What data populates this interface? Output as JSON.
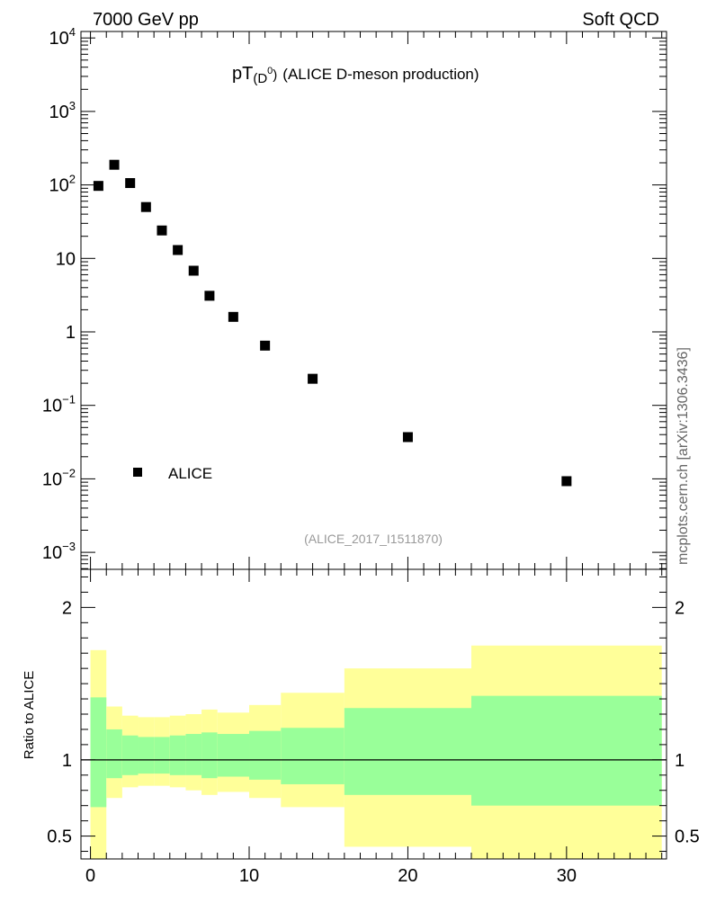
{
  "header": {
    "energy_label": "7000 GeV pp",
    "process_label": "Soft QCD",
    "side_label": "mcplots.cern.ch [arXiv:1306.3436]"
  },
  "chart_data": [
    {
      "type": "scatter",
      "title_main": "pT",
      "title_particle": "(D",
      "title_particle_sup": "0",
      "title_particle_close": ")",
      "title_rest": "(ALICE D-meson production)",
      "watermark": "(ALICE_2017_I1511870)",
      "yscale": "log",
      "ylim": [
        0.0005,
        14000
      ],
      "xlim": [
        -0.6,
        36.3
      ],
      "y_tick_labels": [
        {
          "base": "10",
          "exp": "4"
        },
        {
          "base": "10",
          "exp": "3"
        },
        {
          "base": "10",
          "exp": "2"
        },
        {
          "base": "10",
          "exp": ""
        },
        {
          "base": "1",
          "exp": ""
        },
        {
          "base": "10",
          "exp": "−1"
        },
        {
          "base": "10",
          "exp": "−2"
        },
        {
          "base": "10",
          "exp": "−3"
        }
      ],
      "legend": {
        "position": "bottom-left",
        "entries": [
          "ALICE"
        ]
      },
      "series": [
        {
          "name": "ALICE",
          "marker": "square",
          "color": "#000000",
          "x": [
            0.5,
            1.5,
            2.5,
            3.5,
            4.5,
            5.5,
            6.5,
            7.5,
            9.0,
            11.0,
            14.0,
            20.0,
            30.0
          ],
          "y": [
            97,
            188,
            106,
            50,
            24,
            13,
            6.8,
            3.1,
            1.6,
            0.65,
            0.23,
            0.037,
            0.0093
          ]
        }
      ]
    },
    {
      "type": "area",
      "ylabel": "Ratio to ALICE",
      "ylim": [
        0.35,
        2.25
      ],
      "xlim": [
        -0.6,
        36.3
      ],
      "y_tick_labels": [
        "2",
        "1",
        "0.5"
      ],
      "y_tick_values": [
        2,
        1,
        0.5
      ],
      "x_tick_labels": [
        "0",
        "10",
        "20",
        "30"
      ],
      "x_tick_values": [
        0,
        10,
        20,
        30
      ],
      "reference_line": 1,
      "colors": {
        "outer_band": "#ffff99",
        "inner_band": "#99ff99",
        "line": "#000000"
      },
      "bins": [
        {
          "x0": 0,
          "x1": 1,
          "outer": [
            0.3,
            1.72
          ],
          "inner": [
            0.69,
            1.41
          ]
        },
        {
          "x0": 1,
          "x1": 2,
          "outer": [
            0.75,
            1.35
          ],
          "inner": [
            0.88,
            1.2
          ]
        },
        {
          "x0": 2,
          "x1": 3,
          "outer": [
            0.82,
            1.29
          ],
          "inner": [
            0.9,
            1.16
          ]
        },
        {
          "x0": 3,
          "x1": 4,
          "outer": [
            0.83,
            1.28
          ],
          "inner": [
            0.91,
            1.15
          ]
        },
        {
          "x0": 4,
          "x1": 5,
          "outer": [
            0.83,
            1.28
          ],
          "inner": [
            0.91,
            1.15
          ]
        },
        {
          "x0": 5,
          "x1": 6,
          "outer": [
            0.82,
            1.29
          ],
          "inner": [
            0.9,
            1.16
          ]
        },
        {
          "x0": 6,
          "x1": 7,
          "outer": [
            0.8,
            1.3
          ],
          "inner": [
            0.9,
            1.17
          ]
        },
        {
          "x0": 7,
          "x1": 8,
          "outer": [
            0.77,
            1.33
          ],
          "inner": [
            0.88,
            1.18
          ]
        },
        {
          "x0": 8,
          "x1": 10,
          "outer": [
            0.79,
            1.31
          ],
          "inner": [
            0.89,
            1.17
          ]
        },
        {
          "x0": 10,
          "x1": 12,
          "outer": [
            0.75,
            1.36
          ],
          "inner": [
            0.87,
            1.19
          ]
        },
        {
          "x0": 12,
          "x1": 16,
          "outer": [
            0.69,
            1.44
          ],
          "inner": [
            0.84,
            1.21
          ]
        },
        {
          "x0": 16,
          "x1": 24,
          "outer": [
            0.43,
            1.6
          ],
          "inner": [
            0.77,
            1.34
          ]
        },
        {
          "x0": 24,
          "x1": 36,
          "outer": [
            0.3,
            1.75
          ],
          "inner": [
            0.7,
            1.42
          ]
        }
      ]
    }
  ]
}
